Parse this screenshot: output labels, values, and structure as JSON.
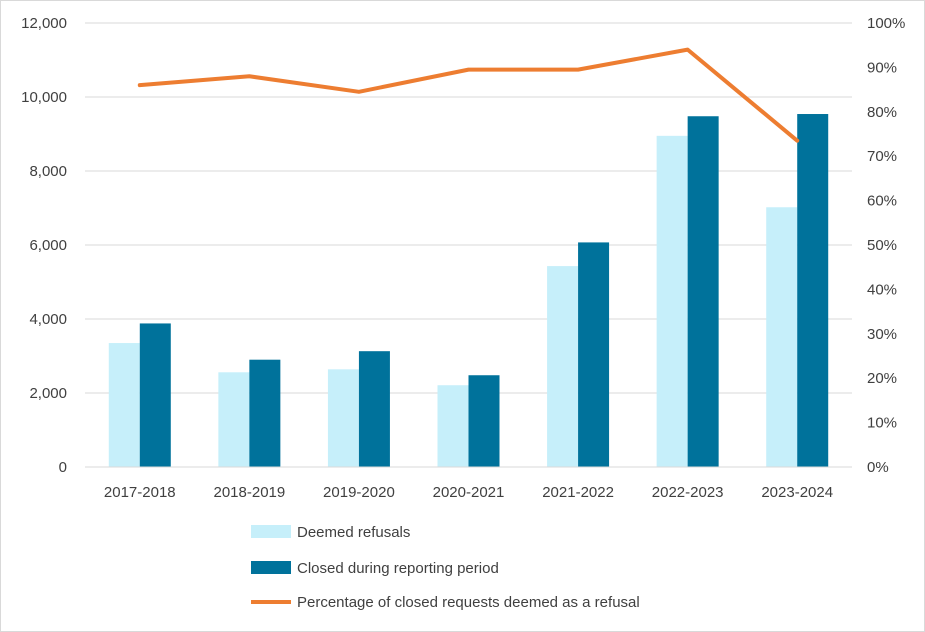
{
  "chart_data": {
    "type": "bar",
    "categories": [
      "2017-2018",
      "2018-2019",
      "2019-2020",
      "2020-2021",
      "2021-2022",
      "2022-2023",
      "2023-2024"
    ],
    "series": [
      {
        "name": "Deemed refusals",
        "type": "bar",
        "axis": "left",
        "color": "#c6effa",
        "values": [
          3350,
          2560,
          2640,
          2210,
          5430,
          8950,
          7020
        ]
      },
      {
        "name": "Closed during reporting period",
        "type": "bar",
        "axis": "left",
        "color": "#00729b",
        "values": [
          3880,
          2900,
          3130,
          2480,
          6070,
          9480,
          9540
        ]
      },
      {
        "name": "Percentage of closed requests deemed as a refusal",
        "type": "line",
        "axis": "right",
        "color": "#ed7d31",
        "values": [
          86,
          88,
          84.5,
          89.5,
          89.5,
          94,
          73.5
        ]
      }
    ],
    "y_left": {
      "min": 0,
      "max": 12000,
      "ticks": [
        "0",
        "2,000",
        "4,000",
        "6,000",
        "8,000",
        "10,000",
        "12,000"
      ]
    },
    "y_right": {
      "min": 0,
      "max": 100,
      "ticks": [
        "0%",
        "10%",
        "20%",
        "30%",
        "40%",
        "50%",
        "60%",
        "70%",
        "80%",
        "90%",
        "100%"
      ]
    },
    "grid": true,
    "legend_position": "bottom"
  }
}
